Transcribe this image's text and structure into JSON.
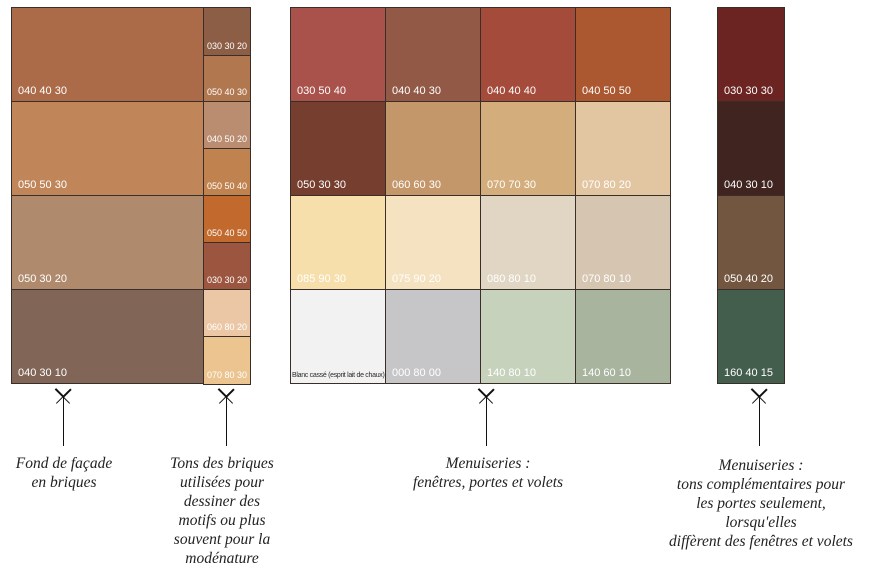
{
  "facade": [
    {
      "code": "040 40 30",
      "color": "#ab6b48"
    },
    {
      "code": "050 50 30",
      "color": "#c0865a"
    },
    {
      "code": "050 30 20",
      "color": "#af8a6d"
    },
    {
      "code": "040 30 10",
      "color": "#816657"
    }
  ],
  "bricks": [
    {
      "code": "030 30 20",
      "color": "#8b5e45"
    },
    {
      "code": "050 40 30",
      "color": "#b17850"
    },
    {
      "code": "040 50 20",
      "color": "#ba8c70"
    },
    {
      "code": "050 50 40",
      "color": "#c0834f"
    },
    {
      "code": "050 40 50",
      "color": "#c26a2e"
    },
    {
      "code": "030 30 20",
      "color": "#9c5640"
    },
    {
      "code": "060 80 20",
      "color": "#ecc7a6"
    },
    {
      "code": "070 80 30",
      "color": "#ebc48f"
    }
  ],
  "menuiseries": [
    {
      "code": "030 50 40",
      "color": "#a9514b"
    },
    {
      "code": "040 40 30",
      "color": "#925a46"
    },
    {
      "code": "040 40 40",
      "color": "#a44b3c"
    },
    {
      "code": "040 50 50",
      "color": "#ab572f"
    },
    {
      "code": "050 30 30",
      "color": "#753e2f"
    },
    {
      "code": "060 60 30",
      "color": "#c4976a"
    },
    {
      "code": "070 70 30",
      "color": "#d3ad7b"
    },
    {
      "code": "070 80 20",
      "color": "#e2c6a1"
    },
    {
      "code": "085 90 30",
      "color": "#f7dfab"
    },
    {
      "code": "075 90 20",
      "color": "#f4e2c1"
    },
    {
      "code": "080 80 10",
      "color": "#e0d6c3"
    },
    {
      "code": "070 80 10",
      "color": "#d6c5b0"
    },
    {
      "code": "Blanc cassé (esprit lait de chaux)",
      "color": "#f2f2f2"
    },
    {
      "code": "000 80 00",
      "color": "#c6c6c9"
    },
    {
      "code": "140 80 10",
      "color": "#c7d2bc"
    },
    {
      "code": "140 60 10",
      "color": "#a8b49d"
    }
  ],
  "complementaires": [
    {
      "code": "030 30 30",
      "color": "#6b2421"
    },
    {
      "code": "040 30 10",
      "color": "#3f2420"
    },
    {
      "code": "050 40 20",
      "color": "#72563f"
    },
    {
      "code": "160 40 15",
      "color": "#435e4d"
    }
  ],
  "captions": {
    "facade": [
      "Fond de façade",
      "en briques"
    ],
    "bricks": [
      "Tons des briques",
      "utilisées pour",
      "dessiner des",
      "motifs ou plus",
      "souvent pour la",
      "modénature"
    ],
    "menuiseries": [
      "Menuiseries :",
      "fenêtres, portes et volets"
    ],
    "complementaires": [
      "Menuiseries :",
      "tons complémentaires pour",
      "les portes seulement,",
      "lorsqu'elles",
      "diffèrent des fenêtres et volets"
    ]
  }
}
